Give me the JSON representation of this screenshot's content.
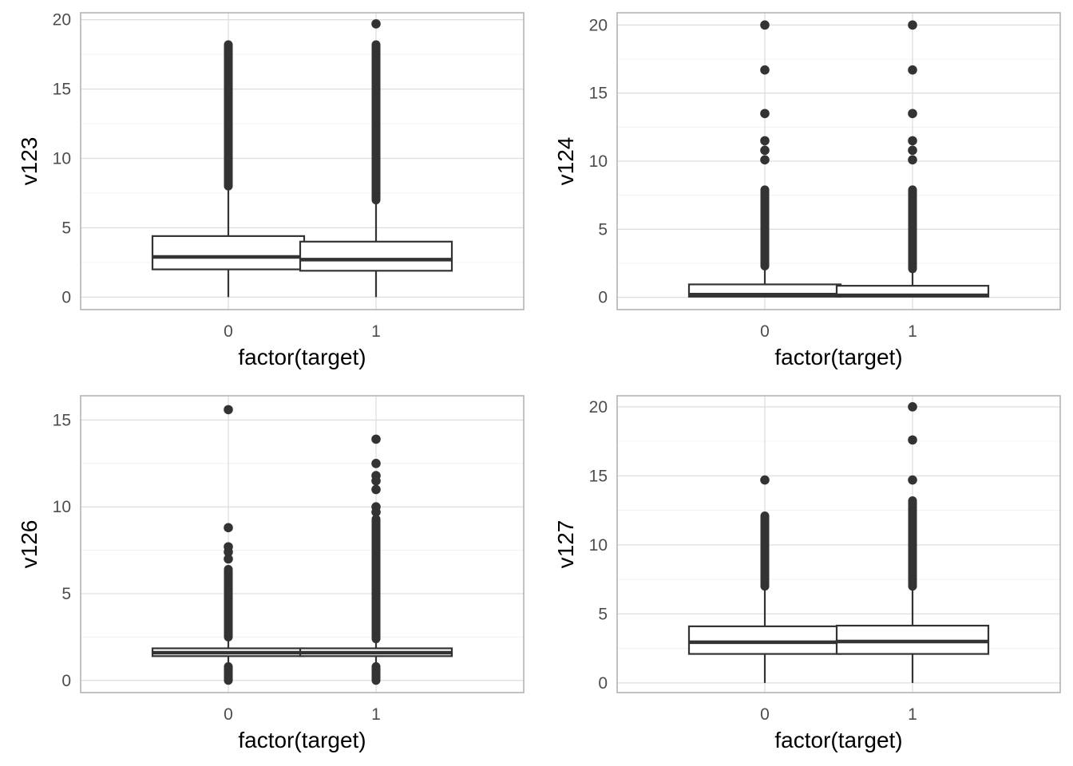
{
  "chart_data": [
    {
      "type": "boxplot",
      "xlabel": "factor(target)",
      "ylabel": "v123",
      "categories": [
        "0",
        "1"
      ],
      "ylim": [
        -0.9,
        20.5
      ],
      "yticks": [
        0,
        5,
        10,
        15,
        20
      ],
      "grid": true,
      "boxes": [
        {
          "category": "0",
          "whisker_low": 0,
          "q1": 2.0,
          "median": 2.9,
          "q3": 4.4,
          "whisker_high": 8.0,
          "outlier_bands": [
            [
              8.0,
              18.2
            ]
          ],
          "outliers": []
        },
        {
          "category": "1",
          "whisker_low": 0,
          "q1": 1.9,
          "median": 2.7,
          "q3": 4.0,
          "whisker_high": 7.0,
          "outlier_bands": [
            [
              7.0,
              18.2
            ]
          ],
          "outliers": [
            19.7
          ]
        }
      ]
    },
    {
      "type": "boxplot",
      "xlabel": "factor(target)",
      "ylabel": "v124",
      "categories": [
        "0",
        "1"
      ],
      "ylim": [
        -0.9,
        20.9
      ],
      "yticks": [
        0,
        5,
        10,
        15,
        20
      ],
      "grid": true,
      "boxes": [
        {
          "category": "0",
          "whisker_low": 0,
          "q1": 0.05,
          "median": 0.2,
          "q3": 0.95,
          "whisker_high": 2.3,
          "outlier_bands": [
            [
              2.3,
              7.9
            ]
          ],
          "outliers": [
            10.1,
            10.8,
            11.5,
            13.5,
            16.7,
            20.0
          ]
        },
        {
          "category": "1",
          "whisker_low": 0,
          "q1": 0.05,
          "median": 0.15,
          "q3": 0.85,
          "whisker_high": 2.1,
          "outlier_bands": [
            [
              2.1,
              7.9
            ]
          ],
          "outliers": [
            10.1,
            10.8,
            11.5,
            13.5,
            16.7,
            20.0
          ]
        }
      ]
    },
    {
      "type": "boxplot",
      "xlabel": "factor(target)",
      "ylabel": "v126",
      "categories": [
        "0",
        "1"
      ],
      "ylim": [
        -0.7,
        16.4
      ],
      "yticks": [
        0,
        5,
        10,
        15
      ],
      "grid": true,
      "boxes": [
        {
          "category": "0",
          "whisker_low": 0.9,
          "q1": 1.4,
          "median": 1.6,
          "q3": 1.85,
          "whisker_high": 2.5,
          "outlier_bands": [
            [
              2.5,
              6.4
            ],
            [
              0.0,
              0.8
            ]
          ],
          "outliers": [
            7.0,
            7.4,
            7.7,
            8.8,
            15.6
          ]
        },
        {
          "category": "1",
          "whisker_low": 0.9,
          "q1": 1.4,
          "median": 1.6,
          "q3": 1.85,
          "whisker_high": 2.4,
          "outlier_bands": [
            [
              2.4,
              9.3
            ],
            [
              0.0,
              0.8
            ]
          ],
          "outliers": [
            9.7,
            10.0,
            11.0,
            11.5,
            11.8,
            12.5,
            13.9
          ]
        }
      ]
    },
    {
      "type": "boxplot",
      "xlabel": "factor(target)",
      "ylabel": "v127",
      "categories": [
        "0",
        "1"
      ],
      "ylim": [
        -0.7,
        20.8
      ],
      "yticks": [
        0,
        5,
        10,
        15,
        20
      ],
      "grid": true,
      "boxes": [
        {
          "category": "0",
          "whisker_low": 0,
          "q1": 2.1,
          "median": 2.95,
          "q3": 4.1,
          "whisker_high": 7.0,
          "outlier_bands": [
            [
              7.0,
              12.1
            ]
          ],
          "outliers": [
            14.7
          ]
        },
        {
          "category": "1",
          "whisker_low": 0,
          "q1": 2.1,
          "median": 3.0,
          "q3": 4.15,
          "whisker_high": 7.0,
          "outlier_bands": [
            [
              7.0,
              13.2
            ]
          ],
          "outliers": [
            14.7,
            17.6,
            20.0
          ]
        }
      ]
    }
  ]
}
